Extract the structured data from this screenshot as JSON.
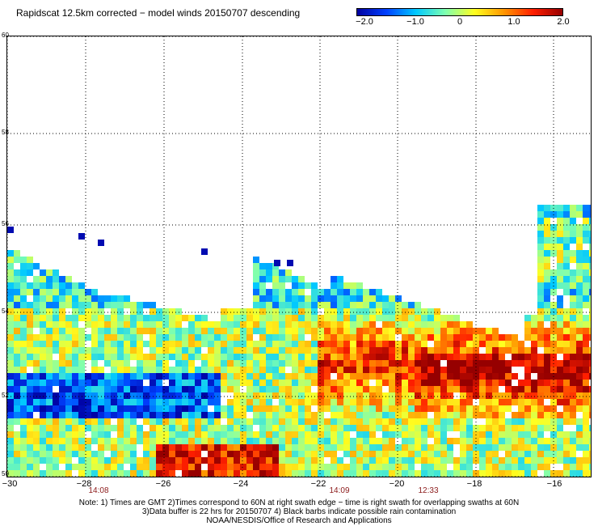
{
  "title": "Rapidscat 12.5km corrected − model winds 20150707 descending",
  "colorbar": {
    "ticks": [
      "−2.0",
      "−1.0",
      "0",
      "1.0",
      "2.0"
    ],
    "range": [
      -2.0,
      2.0
    ],
    "colors": [
      "#0000a0",
      "#0040ff",
      "#00c8ff",
      "#7dffb0",
      "#ffff20",
      "#ff9600",
      "#ff1e00",
      "#960000"
    ]
  },
  "map": {
    "lat_labels": [
      "60",
      "58",
      "56",
      "54",
      "52",
      "50"
    ],
    "lon_labels": [
      "−30",
      "−28",
      "−26",
      "−24",
      "−22",
      "−20",
      "−18",
      "−16"
    ],
    "lat_range": [
      50,
      60
    ],
    "lon_range": [
      -30,
      -15
    ],
    "time_labels": [
      "14:08",
      "14:09",
      "12:33"
    ],
    "grid": "dotted"
  },
  "notes": {
    "line1": "Note: 1) Times are GMT 2)Times correspond to 60N at right swath edge − time is right swath for overlapping swaths at 60N",
    "line2": "3)Data buffer is 22 hrs for 20150707 4) Black barbs indicate possible rain contamination",
    "line3": "NOAA/NESDIS/Office of Research and Applications"
  }
}
